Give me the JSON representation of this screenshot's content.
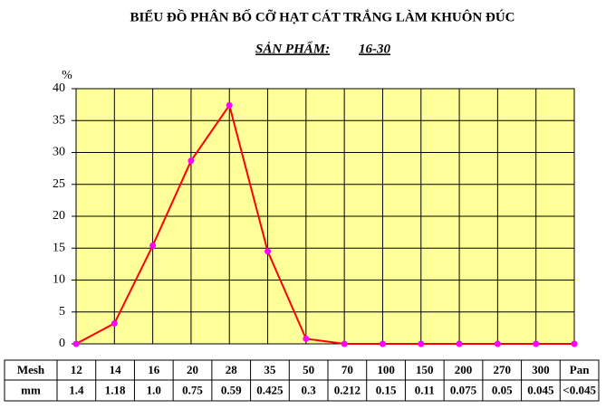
{
  "chart_data": {
    "type": "line",
    "title": "BIỂU ĐỒ PHÂN BỐ CỠ HẠT CÁT TRẮNG LÀM KHUÔN ĐÚC",
    "subtitle": "SẢN PHẨM:",
    "product": "16-30",
    "ylabel": "%",
    "row_labels": [
      "Mesh",
      "mm"
    ],
    "categories": [
      "12",
      "14",
      "16",
      "20",
      "28",
      "35",
      "50",
      "70",
      "100",
      "150",
      "200",
      "270",
      "300",
      "Pan"
    ],
    "mm": [
      "1.4",
      "1.18",
      "1.0",
      "0.75",
      "0.59",
      "0.425",
      "0.3",
      "0.212",
      "0.15",
      "0.11",
      "0.075",
      "0.05",
      "0.045",
      "<0.045"
    ],
    "values": [
      0,
      3.2,
      15.4,
      28.7,
      37.4,
      14.5,
      0.8,
      0,
      0,
      0,
      0,
      0,
      0,
      0
    ],
    "color": "#ff0000",
    "marker_color": "#ff00ff",
    "background": "#ffff99",
    "ylim": [
      0,
      40
    ],
    "yticks": [
      0,
      5,
      10,
      15,
      20,
      25,
      30,
      35,
      40
    ],
    "grid": true
  }
}
